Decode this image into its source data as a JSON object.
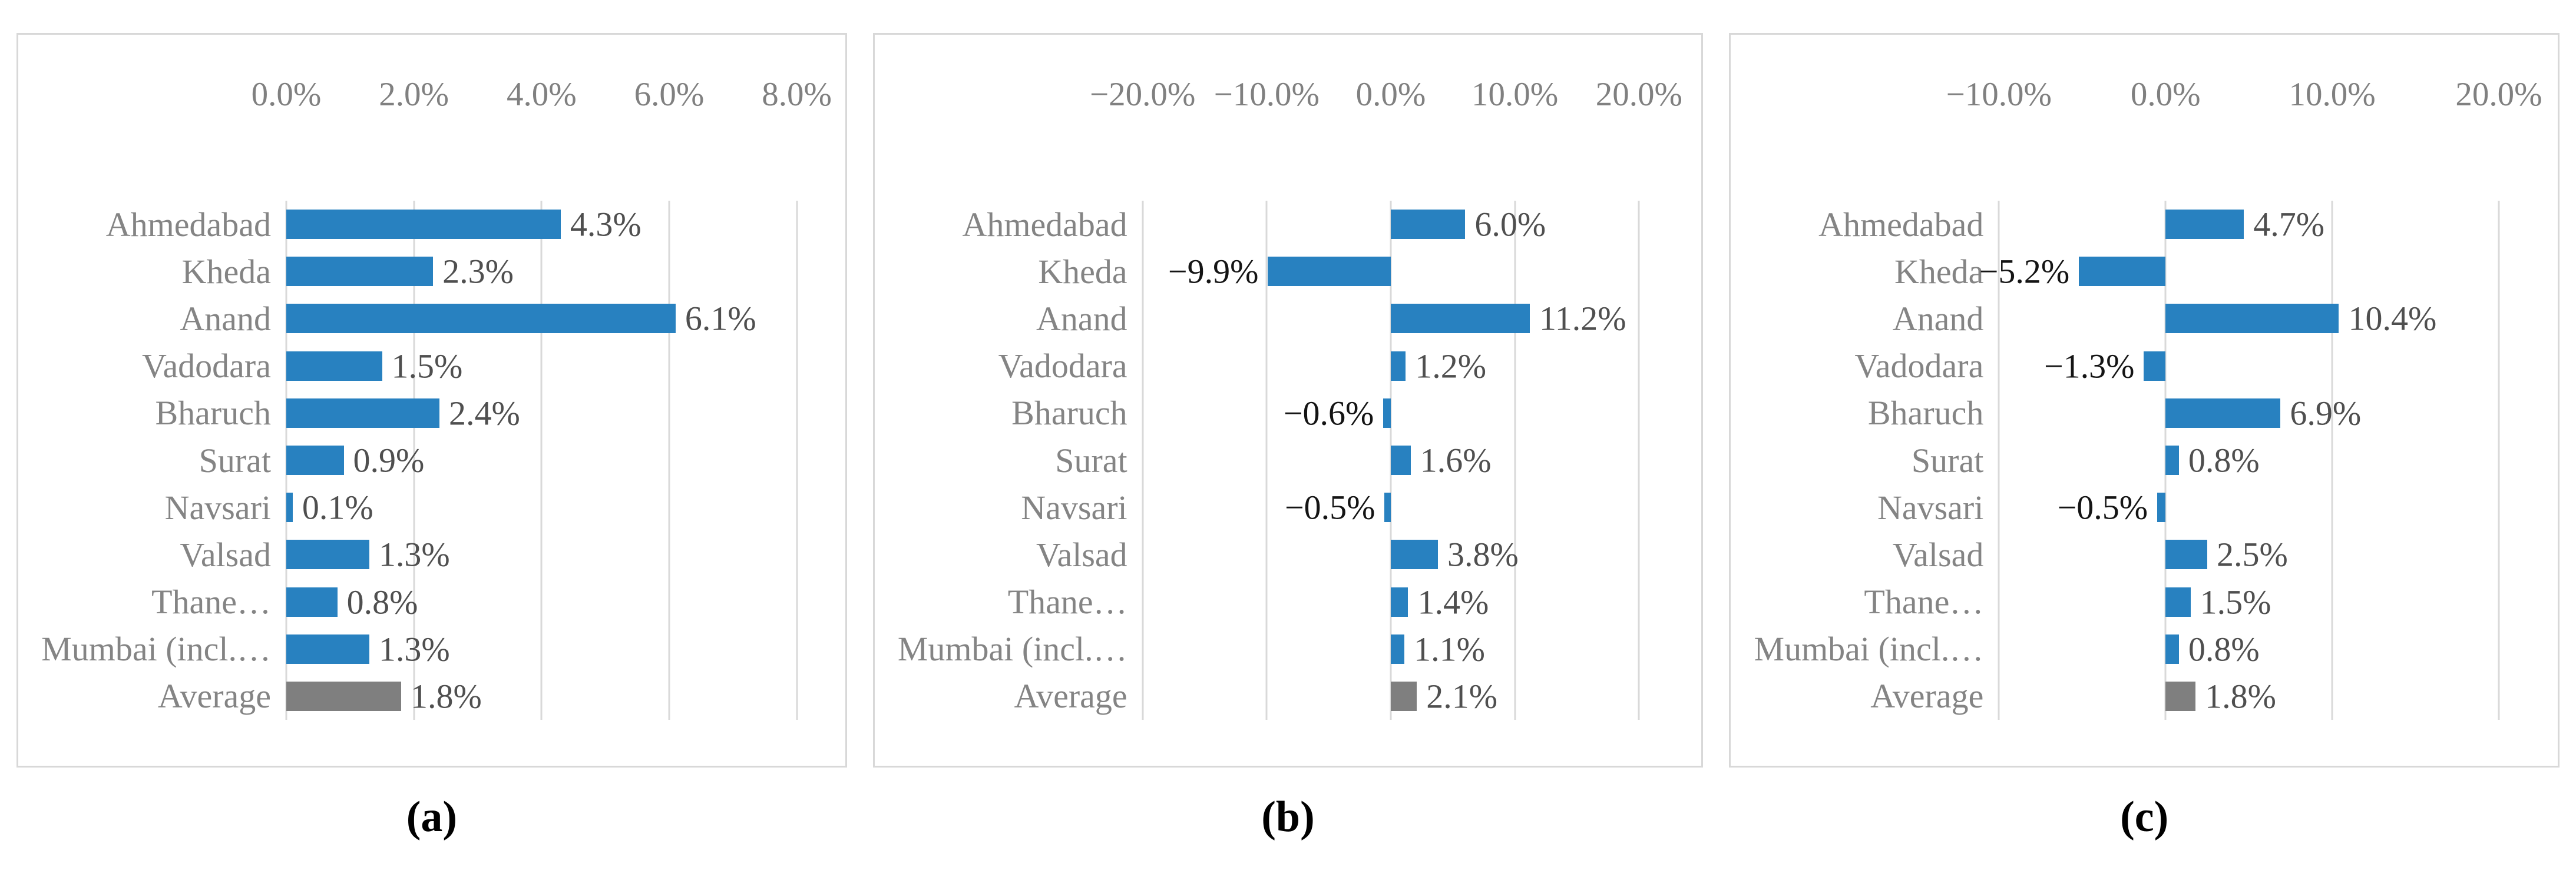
{
  "colors": {
    "bar_blue": "#2881c0",
    "bar_gray": "#7f7f7f",
    "gridline": "#d9d9d9",
    "panel_border": "#d8d8d8",
    "category_text": "#848484",
    "axis_text": "#808080",
    "value_positive": "#4f4f4f",
    "value_negative": "#141414"
  },
  "chart_data": [
    {
      "id": "a",
      "type": "bar",
      "orientation": "horizontal",
      "caption": "(a)",
      "grid": true,
      "legend": false,
      "categories": [
        "Ahmedabad",
        "Kheda",
        "Anand",
        "Vadodara",
        "Bharuch",
        "Surat",
        "Navsari",
        "Valsad",
        "Thane…",
        "Mumbai (incl.…",
        "Average"
      ],
      "values": [
        4.3,
        2.3,
        6.1,
        1.5,
        2.4,
        0.9,
        0.1,
        1.3,
        0.8,
        1.3,
        1.8
      ],
      "value_labels": [
        "4.3%",
        "2.3%",
        "6.1%",
        "1.5%",
        "2.4%",
        "0.9%",
        "0.1%",
        "1.3%",
        "0.8%",
        "1.3%",
        "1.8%"
      ],
      "bar_colors": [
        "#2881c0",
        "#2881c0",
        "#2881c0",
        "#2881c0",
        "#2881c0",
        "#2881c0",
        "#2881c0",
        "#2881c0",
        "#2881c0",
        "#2881c0",
        "#7f7f7f"
      ],
      "axis": {
        "xmin": 0,
        "xmax": 8,
        "ticks": [
          0,
          2,
          4,
          6,
          8
        ],
        "tick_labels": [
          "0.0%",
          "2.0%",
          "4.0%",
          "6.0%",
          "8.0%"
        ]
      },
      "layout": {
        "label_width": 455,
        "right_margin": 82
      }
    },
    {
      "id": "b",
      "type": "bar",
      "orientation": "horizontal",
      "caption": "(b)",
      "grid": true,
      "legend": false,
      "categories": [
        "Ahmedabad",
        "Kheda",
        "Anand",
        "Vadodara",
        "Bharuch",
        "Surat",
        "Navsari",
        "Valsad",
        "Thane…",
        "Mumbai (incl.…",
        "Average"
      ],
      "values": [
        6.0,
        -9.9,
        11.2,
        1.2,
        -0.6,
        1.6,
        -0.5,
        3.8,
        1.4,
        1.1,
        2.1
      ],
      "value_labels": [
        "6.0%",
        "−9.9%",
        "11.2%",
        "1.2%",
        "−0.6%",
        "1.6%",
        "−0.5%",
        "3.8%",
        "1.4%",
        "1.1%",
        "2.1%"
      ],
      "bar_colors": [
        "#2881c0",
        "#2881c0",
        "#2881c0",
        "#2881c0",
        "#2881c0",
        "#2881c0",
        "#2881c0",
        "#2881c0",
        "#2881c0",
        "#2881c0",
        "#7f7f7f"
      ],
      "axis": {
        "xmin": -20,
        "xmax": 20,
        "ticks": [
          -20,
          -10,
          0,
          10,
          20
        ],
        "tick_labels": [
          "−20.0%",
          "−10.0%",
          "0.0%",
          "10.0%",
          "20.0%"
        ]
      },
      "layout": {
        "label_width": 455,
        "right_margin": 106
      }
    },
    {
      "id": "c",
      "type": "bar",
      "orientation": "horizontal",
      "caption": "(c)",
      "grid": true,
      "legend": false,
      "categories": [
        "Ahmedabad",
        "Kheda",
        "Anand",
        "Vadodara",
        "Bharuch",
        "Surat",
        "Navsari",
        "Valsad",
        "Thane…",
        "Mumbai (incl.…",
        "Average"
      ],
      "values": [
        4.7,
        -5.2,
        10.4,
        -1.3,
        6.9,
        0.8,
        -0.5,
        2.5,
        1.5,
        0.8,
        1.8
      ],
      "value_labels": [
        "4.7%",
        "−5.2%",
        "10.4%",
        "−1.3%",
        "6.9%",
        "0.8%",
        "−0.5%",
        "2.5%",
        "1.5%",
        "0.8%",
        "1.8%"
      ],
      "bar_colors": [
        "#2881c0",
        "#2881c0",
        "#2881c0",
        "#2881c0",
        "#2881c0",
        "#2881c0",
        "#2881c0",
        "#2881c0",
        "#2881c0",
        "#2881c0",
        "#7f7f7f"
      ],
      "axis": {
        "xmin": -10,
        "xmax": 20,
        "ticks": [
          -10,
          0,
          10,
          20
        ],
        "tick_labels": [
          "−10.0%",
          "0.0%",
          "10.0%",
          "20.0%"
        ]
      },
      "layout": {
        "label_width": 455,
        "right_margin": 100
      }
    }
  ]
}
